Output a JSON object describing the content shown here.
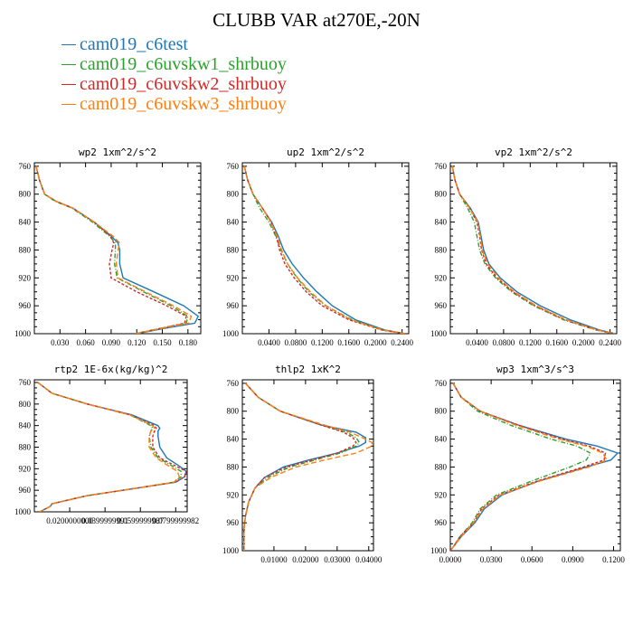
{
  "title": "CLUBB VAR at270E,-20N",
  "legend": [
    {
      "label": "cam019_c6test",
      "color": "#1f77b4"
    },
    {
      "label": "cam019_c6uvskw1_shrbuoy",
      "color": "#2ca02c"
    },
    {
      "label": "cam019_c6uvskw2_shrbuoy",
      "color": "#d62728"
    },
    {
      "label": "cam019_c6uvskw3_shrbuoy",
      "color": "#ff7f0e"
    }
  ],
  "chart_data": [
    {
      "type": "line",
      "title": "wp2  1xm^2/s^2",
      "xlim": [
        0,
        0.195
      ],
      "ylim": [
        1000,
        755
      ],
      "xticks": [
        0.03,
        0.06,
        0.09,
        0.12,
        0.15,
        0.18
      ],
      "xticklabels": [
        "0.030",
        "0.060",
        "0.090",
        "0.120",
        "0.150",
        "0.180"
      ],
      "yticks": [
        760,
        800,
        840,
        880,
        920,
        960,
        1000
      ],
      "y": [
        760,
        780,
        800,
        810,
        820,
        840,
        860,
        870,
        880,
        900,
        920,
        940,
        960,
        975,
        985,
        993,
        1000
      ],
      "series": [
        {
          "name": "cam019_c6test",
          "x": [
            0.002,
            0.006,
            0.012,
            0.025,
            0.045,
            0.07,
            0.09,
            0.098,
            0.1,
            0.1,
            0.104,
            0.14,
            0.175,
            0.192,
            0.188,
            0.15,
            0.12
          ]
        },
        {
          "name": "cam019_c6uvskw1_shrbuoy",
          "x": [
            0.002,
            0.006,
            0.012,
            0.024,
            0.044,
            0.068,
            0.088,
            0.095,
            0.095,
            0.094,
            0.097,
            0.128,
            0.16,
            0.18,
            0.178,
            0.145,
            0.118
          ]
        },
        {
          "name": "cam019_c6uvskw2_shrbuoy",
          "x": [
            0.002,
            0.006,
            0.012,
            0.025,
            0.045,
            0.07,
            0.089,
            0.093,
            0.091,
            0.088,
            0.09,
            0.12,
            0.155,
            0.178,
            0.176,
            0.146,
            0.118
          ]
        },
        {
          "name": "cam019_c6uvskw3_shrbuoy",
          "x": [
            0.002,
            0.006,
            0.012,
            0.025,
            0.045,
            0.07,
            0.092,
            0.1,
            0.098,
            0.096,
            0.098,
            0.13,
            0.163,
            0.184,
            0.181,
            0.147,
            0.118
          ]
        }
      ]
    },
    {
      "type": "line",
      "title": "up2  1xm^2/s^2",
      "xlim": [
        0,
        0.25
      ],
      "ylim": [
        1000,
        755
      ],
      "xticks": [
        0.04,
        0.08,
        0.12,
        0.16,
        0.2,
        0.24
      ],
      "xticklabels": [
        "0.0400",
        "0.0800",
        "0.1200",
        "0.1600",
        "0.2000",
        "0.2400"
      ],
      "yticks": [
        760,
        800,
        840,
        880,
        920,
        960,
        1000
      ],
      "y": [
        760,
        780,
        800,
        820,
        840,
        860,
        880,
        900,
        920,
        940,
        960,
        980,
        995,
        1000
      ],
      "series": [
        {
          "name": "cam019_c6test",
          "x": [
            0.003,
            0.008,
            0.016,
            0.03,
            0.044,
            0.054,
            0.062,
            0.075,
            0.092,
            0.112,
            0.135,
            0.17,
            0.215,
            0.245
          ]
        },
        {
          "name": "cam019_c6uvskw1_shrbuoy",
          "x": [
            0.003,
            0.008,
            0.016,
            0.026,
            0.04,
            0.05,
            0.058,
            0.068,
            0.082,
            0.1,
            0.125,
            0.165,
            0.212,
            0.245
          ]
        },
        {
          "name": "cam019_c6uvskw2_shrbuoy",
          "x": [
            0.003,
            0.008,
            0.016,
            0.03,
            0.043,
            0.051,
            0.056,
            0.064,
            0.078,
            0.096,
            0.12,
            0.16,
            0.21,
            0.245
          ]
        },
        {
          "name": "cam019_c6uvskw3_shrbuoy",
          "x": [
            0.003,
            0.008,
            0.016,
            0.03,
            0.043,
            0.052,
            0.059,
            0.068,
            0.083,
            0.102,
            0.126,
            0.163,
            0.212,
            0.245
          ]
        }
      ]
    },
    {
      "type": "line",
      "title": "vp2  1xm^2/s^2",
      "xlim": [
        0,
        0.25
      ],
      "ylim": [
        1000,
        755
      ],
      "xticks": [
        0.04,
        0.08,
        0.12,
        0.16,
        0.2,
        0.24
      ],
      "xticklabels": [
        "0.0400",
        "0.0800",
        "0.1200",
        "0.1600",
        "0.2000",
        "0.2400"
      ],
      "yticks": [
        760,
        800,
        840,
        880,
        920,
        960,
        1000
      ],
      "y": [
        760,
        780,
        800,
        820,
        840,
        860,
        880,
        900,
        920,
        940,
        960,
        980,
        995,
        1000
      ],
      "series": [
        {
          "name": "cam019_c6test",
          "x": [
            0.003,
            0.007,
            0.014,
            0.03,
            0.042,
            0.046,
            0.05,
            0.058,
            0.075,
            0.1,
            0.135,
            0.18,
            0.225,
            0.248
          ]
        },
        {
          "name": "cam019_c6uvskw1_shrbuoy",
          "x": [
            0.003,
            0.007,
            0.014,
            0.026,
            0.036,
            0.04,
            0.044,
            0.052,
            0.068,
            0.092,
            0.125,
            0.17,
            0.22,
            0.246
          ]
        },
        {
          "name": "cam019_c6uvskw2_shrbuoy",
          "x": [
            0.003,
            0.007,
            0.014,
            0.029,
            0.04,
            0.044,
            0.047,
            0.054,
            0.07,
            0.094,
            0.127,
            0.172,
            0.221,
            0.246
          ]
        },
        {
          "name": "cam019_c6uvskw3_shrbuoy",
          "x": [
            0.003,
            0.007,
            0.014,
            0.029,
            0.041,
            0.045,
            0.048,
            0.056,
            0.072,
            0.096,
            0.129,
            0.174,
            0.222,
            0.247
          ]
        }
      ]
    },
    {
      "type": "line",
      "title": "rtp2  1E-6x(kg/kg)^2",
      "xlim": [
        0,
        0.0865
      ],
      "ylim": [
        1000,
        755
      ],
      "xticks": [
        0.02,
        0.04,
        0.06,
        0.08
      ],
      "xticklabels": [
        "0.0200000000",
        "0.0399999991",
        "0.0599999987",
        "0.0799999982"
      ],
      "yticks": [
        760,
        800,
        840,
        880,
        920,
        960,
        1000
      ],
      "y": [
        760,
        780,
        800,
        820,
        840,
        845,
        850,
        860,
        880,
        900,
        915,
        925,
        935,
        945,
        955,
        970,
        985,
        990,
        1000
      ],
      "series": [
        {
          "name": "cam019_c6test",
          "x": [
            0.002,
            0.01,
            0.03,
            0.055,
            0.07,
            0.071,
            0.07,
            0.07,
            0.071,
            0.075,
            0.082,
            0.086,
            0.085,
            0.08,
            0.06,
            0.03,
            0.01,
            0.009,
            0.003
          ]
        },
        {
          "name": "cam019_c6uvskw1_shrbuoy",
          "x": [
            0.002,
            0.01,
            0.03,
            0.054,
            0.066,
            0.067,
            0.066,
            0.065,
            0.066,
            0.07,
            0.078,
            0.083,
            0.083,
            0.079,
            0.06,
            0.03,
            0.01,
            0.009,
            0.003
          ]
        },
        {
          "name": "cam019_c6uvskw2_shrbuoy",
          "x": [
            0.002,
            0.01,
            0.03,
            0.054,
            0.068,
            0.069,
            0.068,
            0.067,
            0.067,
            0.071,
            0.08,
            0.086,
            0.085,
            0.08,
            0.06,
            0.03,
            0.01,
            0.009,
            0.003
          ]
        },
        {
          "name": "cam019_c6uvskw3_shrbuoy",
          "x": [
            0.002,
            0.01,
            0.03,
            0.054,
            0.067,
            0.068,
            0.066,
            0.065,
            0.065,
            0.069,
            0.076,
            0.081,
            0.082,
            0.079,
            0.06,
            0.03,
            0.01,
            0.009,
            0.003
          ]
        }
      ]
    },
    {
      "type": "line",
      "title": "thlp2  1xK^2",
      "xlim": [
        0,
        0.0415
      ],
      "ylim": [
        1000,
        755
      ],
      "xticks": [
        0.01,
        0.02,
        0.03,
        0.04
      ],
      "xticklabels": [
        "0.01000",
        "0.02000",
        "0.03000",
        "0.04000"
      ],
      "yticks": [
        760,
        800,
        840,
        880,
        920,
        960,
        1000
      ],
      "y": [
        760,
        780,
        800,
        820,
        830,
        838,
        845,
        850,
        860,
        870,
        880,
        895,
        910,
        930,
        950,
        970,
        990,
        1000
      ],
      "series": [
        {
          "name": "cam019_c6test",
          "x": [
            0.001,
            0.005,
            0.012,
            0.025,
            0.036,
            0.039,
            0.039,
            0.037,
            0.03,
            0.021,
            0.013,
            0.007,
            0.004,
            0.002,
            0.001,
            0.0005,
            0.0005,
            0.0005
          ]
        },
        {
          "name": "cam019_c6uvskw1_shrbuoy",
          "x": [
            0.001,
            0.005,
            0.012,
            0.025,
            0.033,
            0.036,
            0.037,
            0.036,
            0.031,
            0.023,
            0.015,
            0.008,
            0.004,
            0.002,
            0.001,
            0.0005,
            0.0005,
            0.0005
          ]
        },
        {
          "name": "cam019_c6uvskw2_shrbuoy",
          "x": [
            0.001,
            0.005,
            0.012,
            0.025,
            0.032,
            0.035,
            0.036,
            0.035,
            0.03,
            0.022,
            0.014,
            0.007,
            0.004,
            0.002,
            0.001,
            0.0005,
            0.0005,
            0.0005
          ]
        },
        {
          "name": "cam019_c6uvskw3_shrbuoy",
          "x": [
            0.001,
            0.005,
            0.012,
            0.026,
            0.034,
            0.038,
            0.041,
            0.041,
            0.036,
            0.026,
            0.017,
            0.009,
            0.004,
            0.002,
            0.001,
            0.0005,
            0.0005,
            0.0005
          ]
        }
      ]
    },
    {
      "type": "line",
      "title": "wp3  1xm^3/s^3",
      "xlim": [
        0,
        0.125
      ],
      "ylim": [
        1000,
        755
      ],
      "xticks": [
        0,
        0.03,
        0.06,
        0.09,
        0.12
      ],
      "xticklabels": [
        "0.0000",
        "0.0300",
        "0.0600",
        "0.0900",
        "0.1200"
      ],
      "yticks": [
        760,
        800,
        840,
        880,
        920,
        960,
        1000
      ],
      "y": [
        760,
        780,
        800,
        820,
        840,
        850,
        860,
        870,
        880,
        900,
        920,
        940,
        960,
        980,
        995,
        1000
      ],
      "series": [
        {
          "name": "cam019_c6test",
          "x": [
            0.002,
            0.008,
            0.022,
            0.05,
            0.085,
            0.108,
            0.123,
            0.118,
            0.1,
            0.065,
            0.038,
            0.025,
            0.018,
            0.008,
            0.002,
            0.0
          ]
        },
        {
          "name": "cam019_c6uvskw1_shrbuoy",
          "x": [
            0.002,
            0.008,
            0.02,
            0.044,
            0.074,
            0.093,
            0.103,
            0.1,
            0.088,
            0.06,
            0.034,
            0.022,
            0.016,
            0.007,
            0.002,
            0.0
          ]
        },
        {
          "name": "cam019_c6uvskw2_shrbuoy",
          "x": [
            0.002,
            0.008,
            0.022,
            0.05,
            0.082,
            0.102,
            0.114,
            0.113,
            0.098,
            0.064,
            0.036,
            0.023,
            0.017,
            0.007,
            0.002,
            0.0
          ]
        },
        {
          "name": "cam019_c6uvskw3_shrbuoy",
          "x": [
            0.002,
            0.008,
            0.022,
            0.048,
            0.08,
            0.1,
            0.112,
            0.115,
            0.102,
            0.066,
            0.037,
            0.024,
            0.017,
            0.008,
            0.002,
            0.0
          ]
        }
      ]
    }
  ]
}
